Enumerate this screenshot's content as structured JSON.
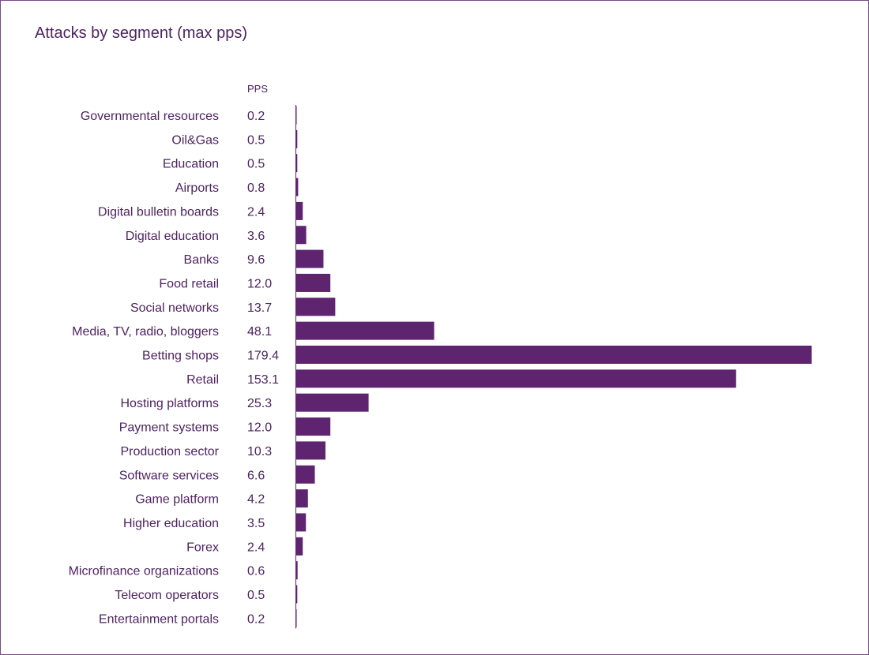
{
  "chart_data": {
    "type": "bar",
    "orientation": "horizontal",
    "title": "Attacks by segment (max pps)",
    "value_column_label": "PPS",
    "bar_color": "#5e2470",
    "categories": [
      "Governmental resources",
      "Oil&Gas",
      "Education",
      "Airports",
      "Digital bulletin boards",
      "Digital education",
      "Banks",
      "Food retail",
      "Social networks",
      "Media, TV, radio, bloggers",
      "Betting shops",
      "Retail",
      "Hosting platforms",
      "Payment systems",
      "Production sector",
      "Software services",
      "Game platform",
      "Higher education",
      "Forex",
      "Microfinance organizations",
      "Telecom operators",
      "Entertainment portals"
    ],
    "values": [
      0.2,
      0.5,
      0.5,
      0.8,
      2.4,
      3.6,
      9.6,
      12.0,
      13.7,
      48.1,
      179.4,
      153.1,
      25.3,
      12.0,
      10.3,
      6.6,
      4.2,
      3.5,
      2.4,
      0.6,
      0.5,
      0.2
    ],
    "value_labels": [
      "0.2",
      "0.5",
      "0.5",
      "0.8",
      "2.4",
      "3.6",
      "9.6",
      "12.0",
      "13.7",
      "48.1",
      "179.4",
      "153.1",
      "25.3",
      "12.0",
      "10.3",
      "6.6",
      "4.2",
      "3.5",
      "2.4",
      "0.6",
      "0.5",
      "0.2"
    ],
    "xlim": [
      0,
      179.4
    ],
    "grid": false,
    "legend": false
  }
}
